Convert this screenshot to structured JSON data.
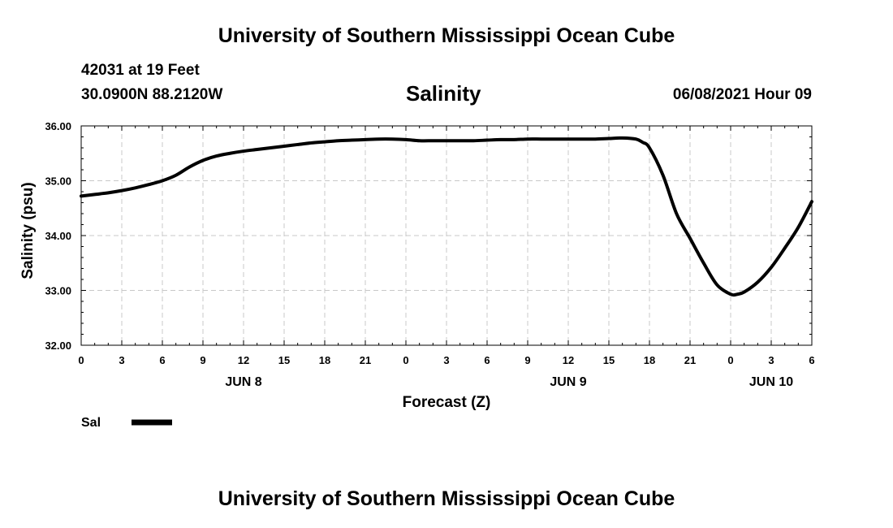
{
  "header": {
    "title": "University of Southern Mississippi Ocean Cube",
    "station": "42031 at 19 Feet",
    "coords": "30.0900N  88.2120W",
    "datetime": "06/08/2021 Hour 09"
  },
  "footer": {
    "title": "University of Southern Mississippi Ocean Cube"
  },
  "chart_data": {
    "type": "line",
    "title": "Salinity",
    "xlabel": "Forecast (Z)",
    "ylabel": "Salinity (psu)",
    "xlim": [
      0,
      54
    ],
    "ylim": [
      32.0,
      36.0
    ],
    "y_ticks": [
      "32.00",
      "33.00",
      "34.00",
      "35.00",
      "36.00"
    ],
    "x_ticks": [
      "0",
      "3",
      "6",
      "9",
      "12",
      "15",
      "18",
      "21",
      "0",
      "3",
      "6",
      "9",
      "12",
      "15",
      "18",
      "21",
      "0",
      "3",
      "6"
    ],
    "date_labels": [
      {
        "label": "JUN 8",
        "hour": 12
      },
      {
        "label": "JUN 9",
        "hour": 36
      },
      {
        "label": "JUN 10",
        "hour": 51
      }
    ],
    "grid": true,
    "legend": "bottom-left",
    "series": [
      {
        "name": "Sal",
        "color": "#000000",
        "x": [
          0,
          1,
          2,
          3,
          4,
          5,
          6,
          7,
          8,
          9,
          10,
          11,
          12,
          13,
          14,
          15,
          16,
          17,
          18,
          19,
          20,
          21,
          22,
          23,
          24,
          25,
          26,
          27,
          28,
          29,
          30,
          31,
          32,
          33,
          34,
          35,
          36,
          37,
          38,
          39,
          40,
          41,
          41.5,
          42,
          43,
          44,
          45,
          46,
          47,
          48,
          48.5,
          49,
          50,
          51,
          52,
          53,
          54
        ],
        "values": [
          34.72,
          34.75,
          34.78,
          34.82,
          34.87,
          34.93,
          35.0,
          35.1,
          35.25,
          35.37,
          35.45,
          35.5,
          35.54,
          35.57,
          35.6,
          35.63,
          35.66,
          35.69,
          35.71,
          35.73,
          35.74,
          35.75,
          35.76,
          35.76,
          35.75,
          35.73,
          35.73,
          35.73,
          35.73,
          35.73,
          35.74,
          35.75,
          35.75,
          35.76,
          35.76,
          35.76,
          35.76,
          35.76,
          35.76,
          35.77,
          35.78,
          35.76,
          35.7,
          35.6,
          35.1,
          34.4,
          33.95,
          33.5,
          33.1,
          32.93,
          32.93,
          32.97,
          33.15,
          33.42,
          33.77,
          34.15,
          34.62
        ]
      }
    ]
  }
}
